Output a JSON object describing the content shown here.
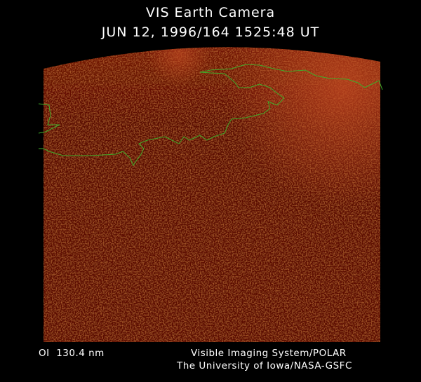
{
  "header": {
    "title": "VIS Earth Camera",
    "timestamp": "JUN 12, 1996/164 1525:48 UT"
  },
  "footer": {
    "filter": "OI  130.4 nm",
    "instrument": "Visible Imaging System/POLAR",
    "institution": "The University of Iowa/NASA-GSFC"
  }
}
